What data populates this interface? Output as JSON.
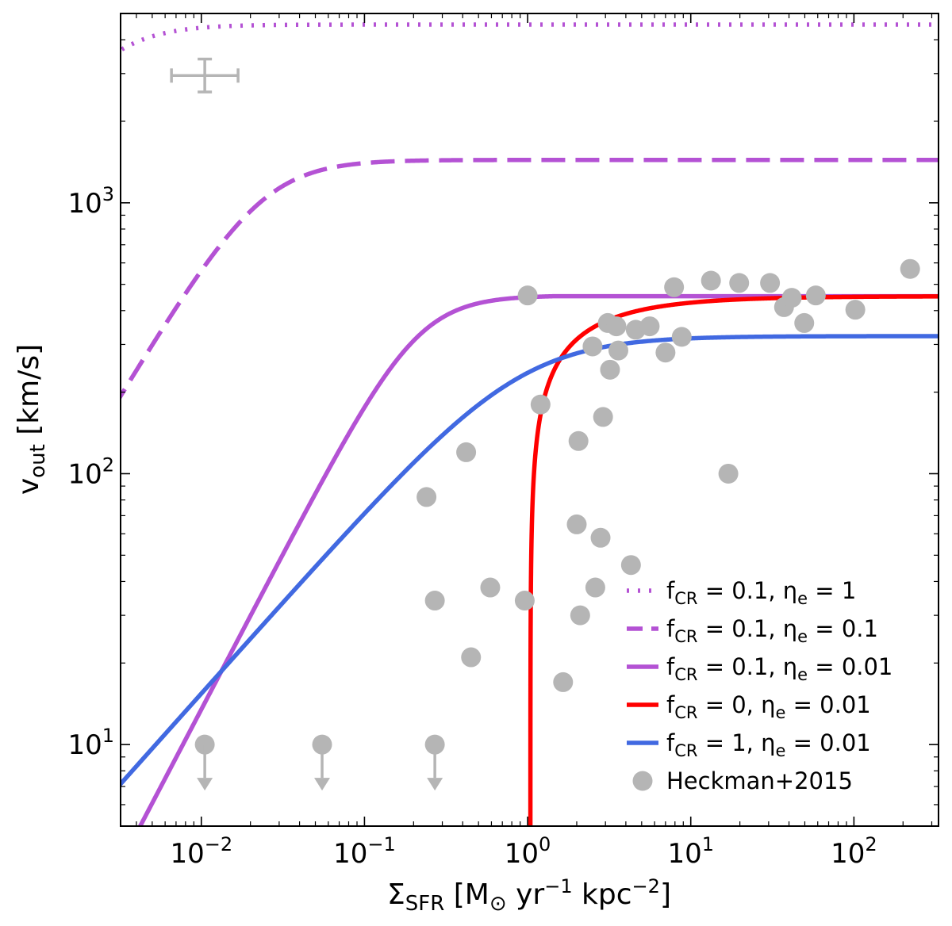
{
  "chart_data": {
    "type": "line",
    "x_scale": "log",
    "y_scale": "log",
    "xlim": [
      0.0032,
      330
    ],
    "ylim": [
      5,
      5000
    ],
    "xlabel": {
      "main": "Σ",
      "sub": "SFR",
      "rest": " [M",
      "sun": "⊙",
      "units": " yr",
      "exp1": "−1",
      "units2": " kpc",
      "exp2": "−2",
      "close": "]"
    },
    "ylabel": {
      "main": "v",
      "sub": "out",
      "rest": " [km/s]"
    },
    "x_ticks": [
      {
        "value": 0.01,
        "base": "10",
        "exp": "−2"
      },
      {
        "value": 0.1,
        "base": "10",
        "exp": "−1"
      },
      {
        "value": 1,
        "base": "10",
        "exp": "0"
      },
      {
        "value": 10,
        "base": "10",
        "exp": "1"
      },
      {
        "value": 100,
        "base": "10",
        "exp": "2"
      }
    ],
    "y_ticks": [
      {
        "value": 10,
        "base": "10",
        "exp": "1"
      },
      {
        "value": 100,
        "base": "10",
        "exp": "2"
      },
      {
        "value": 1000,
        "base": "10",
        "exp": "3"
      }
    ],
    "series": [
      {
        "name": "f_CR = 0.1, η_e = 1",
        "label": {
          "a": "f",
          "as": "CR",
          "b": " = 0.1, η",
          "bs": "e",
          "c": " = 1"
        },
        "color": "#b452d4",
        "dash": "dotted",
        "vmax": 4550,
        "cst": 0.00236,
        "alpha": 2
      },
      {
        "name": "f_CR = 0.1, η_e = 0.1",
        "label": {
          "a": "f",
          "as": "CR",
          "b": " = 0.1, η",
          "bs": "e",
          "c": " = 0.1"
        },
        "color": "#b452d4",
        "dash": "dashed",
        "vmax": 1440,
        "cst": 0.0236,
        "alpha": 2
      },
      {
        "name": "f_CR = 0.1, η_e = 0.01",
        "label": {
          "a": "f",
          "as": "CR",
          "b": " = 0.1, η",
          "bs": "e",
          "c": " = 0.01"
        },
        "color": "#b452d4",
        "dash": "solid",
        "vmax": 452,
        "cst": 0.212,
        "alpha": 2.3,
        "dmin": 0.012
      },
      {
        "name": "f_CR = 0, η_e = 0.01",
        "label": {
          "a": "f",
          "as": "CR",
          "b": " = 0, η",
          "bs": "e",
          "c": " = 0.01"
        },
        "color": "#ff0000",
        "dash": "solid",
        "vmax": 452,
        "x0": 1.04
      },
      {
        "name": "f_CR = 1, η_e = 0.01",
        "label": {
          "a": "f",
          "as": "CR",
          "b": " = 1, η",
          "bs": "e",
          "c": " = 0.01"
        },
        "color": "#4169e1",
        "dash": "solid",
        "vmax": 322,
        "cst": 0.9,
        "alpha": 1.35
      }
    ],
    "scatter": {
      "name": "Heckman+2015",
      "color": "#b5b5b5",
      "points": [
        [
          1.0,
          455
        ],
        [
          0.24,
          82
        ],
        [
          0.27,
          34
        ],
        [
          0.42,
          120
        ],
        [
          0.45,
          21
        ],
        [
          0.59,
          38
        ],
        [
          0.96,
          34
        ],
        [
          1.2,
          180
        ],
        [
          1.65,
          17
        ],
        [
          2.0,
          65
        ],
        [
          2.05,
          132
        ],
        [
          2.1,
          30
        ],
        [
          2.5,
          295
        ],
        [
          2.6,
          38
        ],
        [
          2.8,
          58
        ],
        [
          2.9,
          162
        ],
        [
          3.1,
          360
        ],
        [
          3.2,
          242
        ],
        [
          3.5,
          350
        ],
        [
          3.6,
          285
        ],
        [
          4.3,
          46
        ],
        [
          4.6,
          340
        ],
        [
          5.6,
          350
        ],
        [
          7.0,
          280
        ],
        [
          7.9,
          488
        ],
        [
          8.8,
          320
        ],
        [
          13.3,
          516
        ],
        [
          17.0,
          100
        ],
        [
          19.8,
          506
        ],
        [
          30.6,
          506
        ],
        [
          37.3,
          412
        ],
        [
          41.6,
          446
        ],
        [
          49.6,
          360
        ],
        [
          58.4,
          455
        ],
        [
          102,
          403
        ],
        [
          221,
          570
        ]
      ],
      "upper_limits": [
        [
          0.0105,
          10
        ],
        [
          0.055,
          10
        ],
        [
          0.27,
          10
        ]
      ]
    },
    "error_bar": {
      "x": 0.0105,
      "y": 2950,
      "xerr_factor": 1.6,
      "yerr_factor": 1.15,
      "color": "#b5b5b5"
    },
    "legend": {
      "position": "lower-right"
    }
  }
}
